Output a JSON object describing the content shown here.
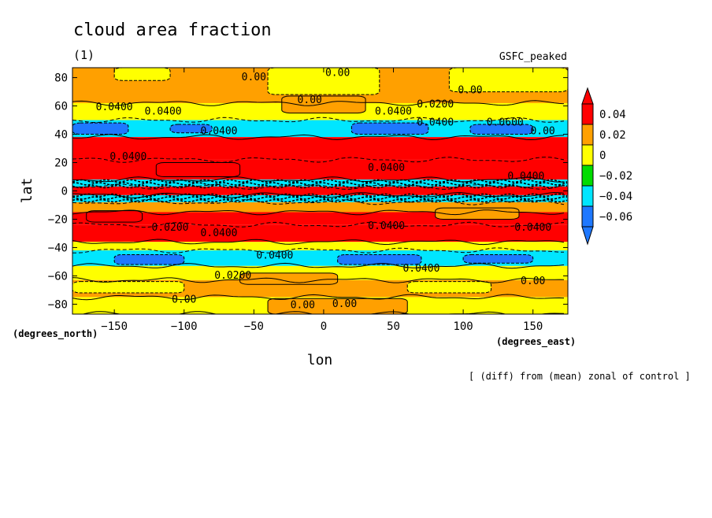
{
  "chart_data": {
    "type": "heatmap",
    "title": "cloud area fraction",
    "panel_label": "(1)",
    "case_label": "GSFC_peaked",
    "xlabel": "lon",
    "ylabel": "lat",
    "xunits": "(degrees_east)",
    "yunits": "(degrees_north)",
    "note": "[ (diff) from (mean) zonal of control ]",
    "xlim": [
      -180,
      175
    ],
    "ylim": [
      -87,
      87
    ],
    "x_ticks": [
      -150,
      -100,
      -50,
      0,
      50,
      100,
      150
    ],
    "x_tick_labels": [
      "−150",
      "−100",
      "−50",
      "0",
      "50",
      "100",
      "150"
    ],
    "y_ticks": [
      80,
      60,
      40,
      20,
      0,
      -20,
      -40,
      -60,
      -80
    ],
    "y_tick_labels": [
      "80",
      "60",
      "40",
      "20",
      "0",
      "−20",
      "−40",
      "−60",
      "−80"
    ],
    "colorbar": {
      "levels": [
        -0.06,
        -0.04,
        -0.02,
        0,
        0.02,
        0.04
      ],
      "labels": [
        "−0.06",
        "−0.04",
        "−0.02",
        "0",
        "0.02",
        "0.04"
      ],
      "colors": [
        "#1e78ff",
        "#00e6ff",
        "#00dc00",
        "#ffff00",
        "#ffa000",
        "#ff0000"
      ],
      "under_color": "#1e78ff",
      "over_color": "#ff0000"
    },
    "zonal_bands": [
      {
        "lat": [
          62,
          87
        ],
        "value": 0.01
      },
      {
        "lat": [
          50,
          62
        ],
        "value": -0.01
      },
      {
        "lat": [
          38,
          50
        ],
        "value": -0.05
      },
      {
        "lat": [
          22,
          38
        ],
        "value": 0.05
      },
      {
        "lat": [
          8,
          22
        ],
        "value": 0.03
      },
      {
        "lat": [
          3,
          8
        ],
        "value": -0.05
      },
      {
        "lat": [
          -3,
          3
        ],
        "value": 0.05
      },
      {
        "lat": [
          -8,
          -3
        ],
        "value": -0.05
      },
      {
        "lat": [
          -15,
          -8
        ],
        "value": 0.01
      },
      {
        "lat": [
          -24,
          -15
        ],
        "value": 0.03
      },
      {
        "lat": [
          -36,
          -24
        ],
        "value": 0.05
      },
      {
        "lat": [
          -42,
          -36
        ],
        "value": -0.01
      },
      {
        "lat": [
          -53,
          -42
        ],
        "value": -0.05
      },
      {
        "lat": [
          -63,
          -53
        ],
        "value": -0.01
      },
      {
        "lat": [
          -75,
          -63
        ],
        "value": 0.01
      },
      {
        "lat": [
          -87,
          -75
        ],
        "value": -0.01
      }
    ],
    "patches": [
      {
        "lon": [
          -150,
          -110
        ],
        "lat": [
          78,
          87
        ],
        "value": -0.01
      },
      {
        "lon": [
          -40,
          40
        ],
        "lat": [
          68,
          87
        ],
        "value": -0.01
      },
      {
        "lon": [
          90,
          175
        ],
        "lat": [
          70,
          87
        ],
        "value": -0.01
      },
      {
        "lon": [
          -30,
          30
        ],
        "lat": [
          55,
          67
        ],
        "value": 0.01
      },
      {
        "lon": [
          -180,
          -140
        ],
        "lat": [
          40,
          48
        ],
        "value": -0.07
      },
      {
        "lon": [
          -110,
          -80
        ],
        "lat": [
          41,
          47
        ],
        "value": -0.07
      },
      {
        "lon": [
          20,
          75
        ],
        "lat": [
          40,
          48
        ],
        "value": -0.07
      },
      {
        "lon": [
          105,
          150
        ],
        "lat": [
          40,
          47
        ],
        "value": -0.07
      },
      {
        "lon": [
          -120,
          -60
        ],
        "lat": [
          10,
          20
        ],
        "value": 0.05
      },
      {
        "lon": [
          -170,
          -130
        ],
        "lat": [
          -22,
          -14
        ],
        "value": 0.05
      },
      {
        "lon": [
          80,
          140
        ],
        "lat": [
          -20,
          -12
        ],
        "value": 0.01
      },
      {
        "lon": [
          -150,
          -100
        ],
        "lat": [
          -52,
          -45
        ],
        "value": -0.07
      },
      {
        "lon": [
          10,
          70
        ],
        "lat": [
          -52,
          -45
        ],
        "value": -0.07
      },
      {
        "lon": [
          100,
          150
        ],
        "lat": [
          -51,
          -45
        ],
        "value": -0.07
      },
      {
        "lon": [
          -180,
          -100
        ],
        "lat": [
          -72,
          -64
        ],
        "value": -0.01
      },
      {
        "lon": [
          -60,
          10
        ],
        "lat": [
          -66,
          -58
        ],
        "value": 0.01
      },
      {
        "lon": [
          60,
          120
        ],
        "lat": [
          -72,
          -64
        ],
        "value": -0.01
      },
      {
        "lon": [
          -40,
          60
        ],
        "lat": [
          -87,
          -76
        ],
        "value": 0.01
      }
    ],
    "contour_labels": [
      {
        "text": "0.00",
        "lon": -50,
        "lat": 80
      },
      {
        "text": "0.00",
        "lon": 10,
        "lat": 83
      },
      {
        "text": "0.00",
        "lon": 105,
        "lat": 71
      },
      {
        "text": "0.0200",
        "lon": 80,
        "lat": 61
      },
      {
        "text": "0.00",
        "lon": -10,
        "lat": 64
      },
      {
        "text": "0.0400",
        "lon": -150,
        "lat": 59
      },
      {
        "text": "0.0400",
        "lon": -115,
        "lat": 56
      },
      {
        "text": "0.0400",
        "lon": 50,
        "lat": 56
      },
      {
        "text": "0.0400",
        "lon": 80,
        "lat": 48
      },
      {
        "text": "0.0600",
        "lon": 130,
        "lat": 48
      },
      {
        "text": "0.00",
        "lon": 157,
        "lat": 42
      },
      {
        "text": "0.0400",
        "lon": -75,
        "lat": 42
      },
      {
        "text": "0.0400",
        "lon": -140,
        "lat": 24
      },
      {
        "text": "0.0400",
        "lon": 45,
        "lat": 16
      },
      {
        "text": "0.0400",
        "lon": 145,
        "lat": 10
      },
      {
        "text": "0.0200",
        "lon": -110,
        "lat": -26
      },
      {
        "text": "0.0400",
        "lon": -75,
        "lat": -30
      },
      {
        "text": "0.0400",
        "lon": 45,
        "lat": -25
      },
      {
        "text": "0.0400",
        "lon": 150,
        "lat": -26
      },
      {
        "text": "0.0400",
        "lon": -35,
        "lat": -46
      },
      {
        "text": "0.0400",
        "lon": 70,
        "lat": -55
      },
      {
        "text": "0.0200",
        "lon": -65,
        "lat": -60
      },
      {
        "text": "0.00",
        "lon": -100,
        "lat": -77
      },
      {
        "text": "0.00",
        "lon": -15,
        "lat": -81
      },
      {
        "text": "0.00",
        "lon": 15,
        "lat": -80
      },
      {
        "text": "0.00",
        "lon": 150,
        "lat": -64
      }
    ]
  }
}
